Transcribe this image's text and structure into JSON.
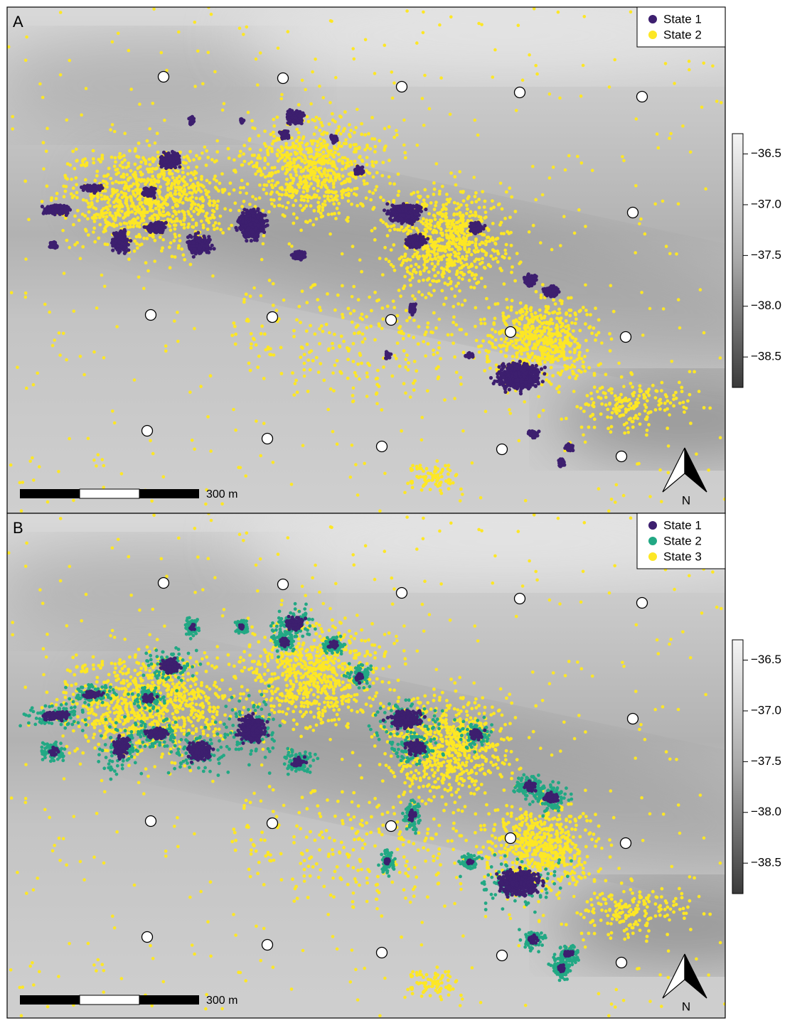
{
  "panels": [
    {
      "label": "A",
      "legend": [
        {
          "name": "State 1",
          "color": "#3d1f6f"
        },
        {
          "name": "State 2",
          "color": "#fde725"
        }
      ],
      "scale_bar": "300 m",
      "north": "N",
      "colorbar": {
        "lim": [
          -38.8,
          -36.3
        ],
        "ticks": [
          {
            "value": -36.5,
            "label": "−36.5"
          },
          {
            "value": -37.0,
            "label": "−37.0"
          },
          {
            "value": -37.5,
            "label": "−37.5"
          },
          {
            "value": -38.0,
            "label": "−38.0"
          },
          {
            "value": -38.5,
            "label": "−38.5"
          }
        ]
      }
    },
    {
      "label": "B",
      "legend": [
        {
          "name": "State 1",
          "color": "#3d1f6f"
        },
        {
          "name": "State 2",
          "color": "#22a884"
        },
        {
          "name": "State 3",
          "color": "#fde725"
        }
      ],
      "scale_bar": "300 m",
      "north": "N",
      "colorbar": {
        "lim": [
          -38.8,
          -36.3
        ],
        "ticks": [
          {
            "value": -36.5,
            "label": "−36.5"
          },
          {
            "value": -37.0,
            "label": "−37.0"
          },
          {
            "value": -37.5,
            "label": "−37.5"
          },
          {
            "value": -38.0,
            "label": "−38.0"
          },
          {
            "value": -38.5,
            "label": "−38.5"
          }
        ]
      }
    }
  ]
}
